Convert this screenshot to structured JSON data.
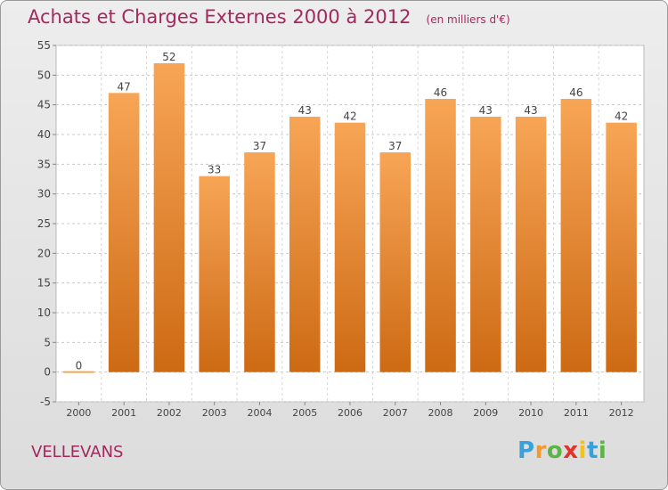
{
  "header": {
    "title": "Achats et Charges Externes 2000 à 2012",
    "subtitle": "(en milliers d'€)"
  },
  "commune": "VELLEVANS",
  "brand": {
    "letters": [
      "P",
      "r",
      "o",
      "x",
      "i",
      "t",
      "i"
    ],
    "colors": [
      "#3aa0d8",
      "#f29a2e",
      "#5bb544",
      "#e2332b",
      "#f2c21b",
      "#3aa0d8",
      "#5bb544"
    ]
  },
  "chart_data": {
    "type": "bar",
    "categories": [
      "2000",
      "2001",
      "2002",
      "2003",
      "2004",
      "2005",
      "2006",
      "2007",
      "2008",
      "2009",
      "2010",
      "2011",
      "2012"
    ],
    "values": [
      0,
      47,
      52,
      33,
      37,
      43,
      42,
      37,
      46,
      43,
      43,
      46,
      42
    ],
    "data_labels": [
      "0",
      "47",
      "52",
      "33",
      "37",
      "43",
      "42",
      "37",
      "46",
      "43",
      "43",
      "46",
      "42"
    ],
    "title": "Achats et Charges Externes 2000 à 2012",
    "xlabel": "",
    "ylabel": "",
    "ylim": [
      -5,
      55
    ],
    "yticks": [
      -5,
      0,
      5,
      10,
      15,
      20,
      25,
      30,
      35,
      40,
      45,
      50,
      55
    ],
    "grid": true,
    "colors": {
      "bar_top": "#f7a556",
      "bar_bottom": "#cd6a14",
      "zero_line": "#f2a94d",
      "label": "#444444",
      "title": "#a3285e"
    }
  }
}
